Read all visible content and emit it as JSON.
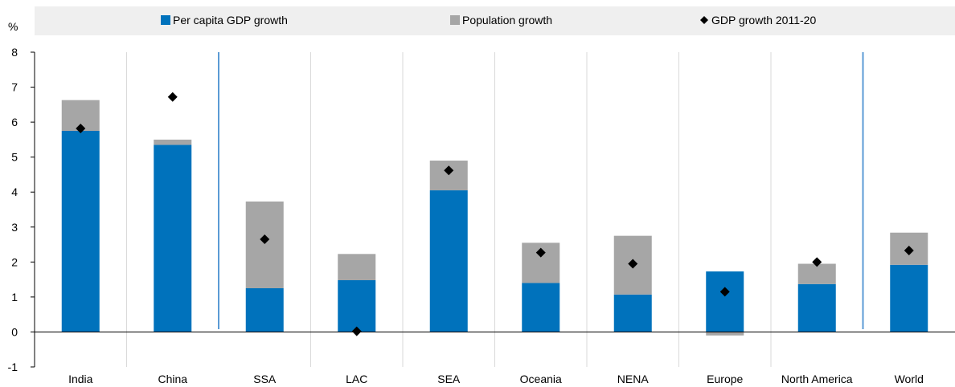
{
  "colors": {
    "per_capita": "#0072BC",
    "population": "#A6A6A6",
    "marker": "#000000",
    "legend_bg": "#EFEFEF",
    "grid": "#D9D9D9",
    "separator": "#5B9BD5"
  },
  "chart_data": {
    "type": "bar",
    "stacked": true,
    "unit_label": "%",
    "categories": [
      "India",
      "China",
      "SSA",
      "LAC",
      "SEA",
      "Oceania",
      "NENA",
      "Europe",
      "North America",
      "World"
    ],
    "series": [
      {
        "name": "Per capita GDP growth",
        "kind": "bar",
        "color": "#0072BC",
        "values": [
          5.75,
          5.35,
          1.25,
          1.48,
          4.05,
          1.4,
          1.07,
          1.73,
          1.37,
          1.92
        ]
      },
      {
        "name": "Population growth",
        "kind": "bar",
        "color": "#A6A6A6",
        "values": [
          0.88,
          0.15,
          2.48,
          0.75,
          0.85,
          1.15,
          1.68,
          -0.1,
          0.58,
          0.92
        ]
      },
      {
        "name": "GDP growth 2011-20",
        "kind": "marker",
        "marker": "diamond",
        "color": "#000000",
        "values": [
          5.82,
          6.72,
          2.65,
          0.02,
          4.62,
          2.27,
          1.95,
          1.15,
          2.0,
          2.33
        ]
      }
    ],
    "ylim": [
      -1,
      8
    ],
    "yticks": [
      -1,
      0,
      1,
      2,
      3,
      4,
      5,
      6,
      7,
      8
    ],
    "grid": "vertical category separators",
    "legend_position": "top",
    "group_separators_after": [
      "China",
      "North America"
    ]
  }
}
